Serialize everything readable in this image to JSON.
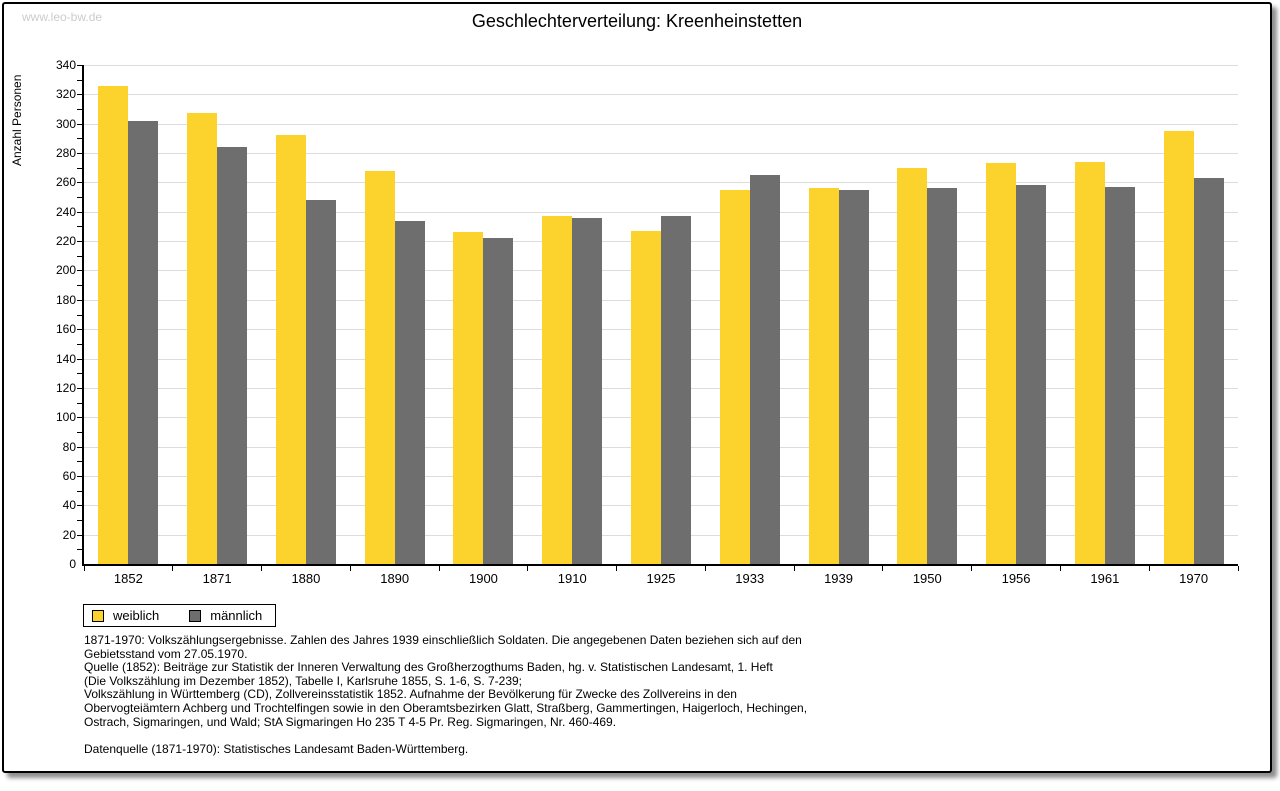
{
  "watermark": "www.leo-bw.de",
  "title": "Geschlechterverteilung: Kreenheinstetten",
  "chart_data": {
    "type": "bar",
    "title": "Geschlechterverteilung: Kreenheinstetten",
    "xlabel": "",
    "ylabel": "Anzahl Personen",
    "ylim": [
      0,
      340
    ],
    "ytick_label_step": 20,
    "ytick_minor_step": 10,
    "grid": true,
    "legend_position": "bottom-left",
    "categories": [
      "1852",
      "1871",
      "1880",
      "1890",
      "1900",
      "1910",
      "1925",
      "1933",
      "1939",
      "1950",
      "1956",
      "1961",
      "1970"
    ],
    "series": [
      {
        "name": "weiblich",
        "color": "#FCD32C",
        "values": [
          326,
          307,
          292,
          268,
          226,
          237,
          227,
          255,
          256,
          270,
          273,
          274,
          295
        ]
      },
      {
        "name": "männlich",
        "color": "#6E6E6E",
        "values": [
          302,
          284,
          248,
          234,
          222,
          236,
          237,
          265,
          255,
          256,
          258,
          257,
          263
        ]
      }
    ]
  },
  "colors": {
    "gridline": "#dcdcdc",
    "axis": "#000000",
    "watermark": "#cccccc"
  },
  "footnotes": {
    "lines": [
      "1871-1970: Volkszählungsergebnisse. Zahlen des Jahres 1939 einschließlich Soldaten. Die angegebenen Daten beziehen sich auf den",
      "Gebietsstand vom 27.05.1970.",
      "Quelle (1852): Beiträge zur Statistik der Inneren Verwaltung des Großherzogthums Baden, hg. v. Statistischen Landesamt, 1. Heft",
      "(Die Volkszählung im Dezember 1852), Tabelle I, Karlsruhe 1855, S. 1-6, S. 7-239;",
      "Volkszählung in Württemberg (CD), Zollvereinsstatistik 1852. Aufnahme der Bevölkerung für Zwecke des Zollvereins in den",
      "Obervogteiämtern Achberg und Trochtelfingen sowie in den Oberamtsbezirken Glatt, Straßberg, Gammertingen, Haigerloch, Hechingen,",
      "Ostrach, Sigmaringen, und Wald; StA Sigmaringen Ho 235 T 4-5 Pr. Reg. Sigmaringen, Nr. 460-469.",
      "",
      "Datenquelle (1871-1970): Statistisches Landesamt Baden-Württemberg."
    ]
  }
}
